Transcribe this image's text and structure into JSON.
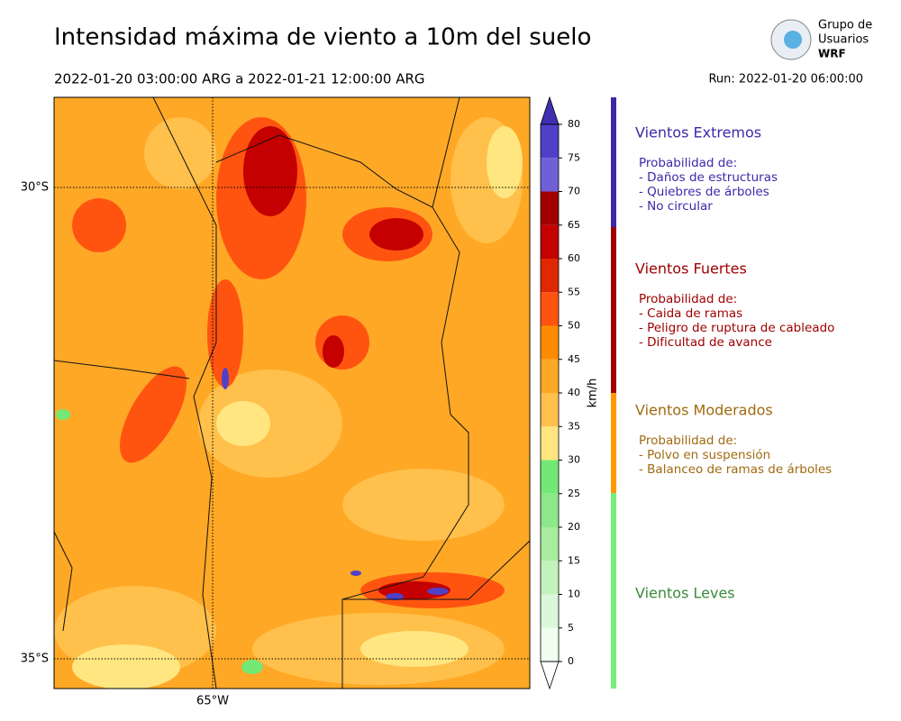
{
  "title": "Intensidad máxima de viento a 10m del suelo",
  "subtitle": "2022-01-20 03:00:00 ARG  a  2022-01-21 12:00:00 ARG",
  "run": "Run: 2022-01-20 06:00:00",
  "logo": {
    "line1": "Grupo de",
    "line2": "Usuarios",
    "line3": "WRF"
  },
  "map": {
    "lat_labels": [
      "30°S",
      "35°S"
    ],
    "lon_labels": [
      "65°W"
    ]
  },
  "colorbar": {
    "label": "km/h",
    "ticks": [
      0,
      5,
      10,
      15,
      20,
      25,
      30,
      35,
      40,
      45,
      50,
      55,
      60,
      65,
      70,
      75,
      80
    ],
    "colors": [
      "#f0fff0",
      "#dcf8dc",
      "#c4f2bc",
      "#a8eca0",
      "#8ce888",
      "#74e874",
      "#ffe680",
      "#ffc04c",
      "#ffa826",
      "#ff8c00",
      "#ff5410",
      "#e02800",
      "#c40000",
      "#a00000",
      "#7060d8",
      "#5040c8",
      "#4030b0"
    ]
  },
  "categories": [
    {
      "title": "Vientos Extremos",
      "color": "#3a2aa8",
      "lines": [
        "Probabilidad de:",
        "- Daños de estructuras",
        "- Quiebres de árboles",
        "- No circular"
      ]
    },
    {
      "title": "Vientos Fuertes",
      "color": "#a00000",
      "lines": [
        "Probabilidad de:",
        "- Caida de ramas",
        "- Peligro de ruptura de cableado",
        "- Dificultad de avance"
      ]
    },
    {
      "title": "Vientos Moderados",
      "color": "#a06a10",
      "lines": [
        "Probabilidad de:",
        "- Polvo en suspensión",
        "- Balanceo de ramas de árboles"
      ]
    },
    {
      "title": "Vientos Leves",
      "color": "#3a8a3a",
      "lines": []
    }
  ]
}
